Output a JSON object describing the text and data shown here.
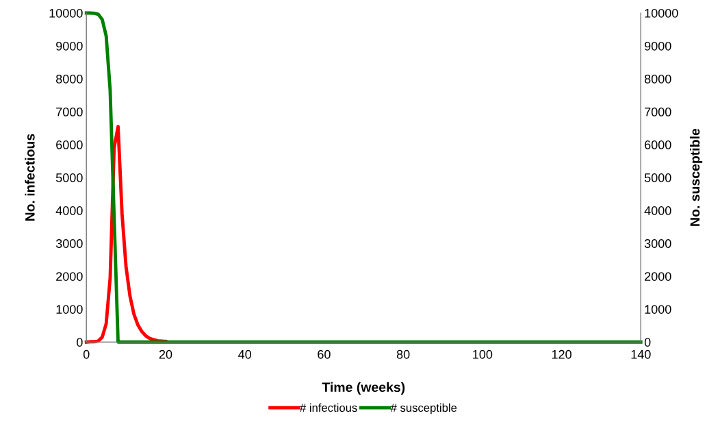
{
  "chart_data": {
    "type": "line",
    "xlabel": "Time (weeks)",
    "ylabel": "No. infectious",
    "y2label": "No. susceptible",
    "xlim": [
      0,
      140
    ],
    "xticks": [
      0,
      20,
      40,
      60,
      80,
      100,
      120,
      140
    ],
    "ylim": [
      0,
      10000
    ],
    "yticks": [
      0,
      1000,
      2000,
      3000,
      4000,
      5000,
      6000,
      7000,
      8000,
      9000,
      10000
    ],
    "y2lim": [
      0,
      10000
    ],
    "y2ticks": [
      0,
      1000,
      2000,
      3000,
      4000,
      5000,
      6000,
      7000,
      8000,
      9000,
      10000
    ],
    "legend": "bottom",
    "grid": false,
    "marker": "none",
    "line_style": "solid",
    "series": [
      {
        "name": "# infectious",
        "color": "#ff0000",
        "x": [
          0,
          1,
          2,
          3,
          4,
          5,
          6,
          7,
          8,
          9,
          10,
          11,
          12,
          13,
          14,
          15,
          16,
          17,
          18,
          19,
          20
        ],
        "values": [
          0,
          10,
          10,
          30,
          150,
          560,
          1950,
          5900,
          6550,
          3900,
          2300,
          1400,
          850,
          520,
          320,
          190,
          110,
          70,
          40,
          30,
          20
        ]
      },
      {
        "name": "# susceptible",
        "color": "#008000",
        "axis": "y2",
        "x": [
          0,
          1,
          2,
          3,
          4,
          5,
          6,
          7,
          8,
          140
        ],
        "values": [
          10000,
          10000,
          9990,
          9960,
          9800,
          9300,
          7650,
          3800,
          0,
          0
        ]
      }
    ]
  }
}
